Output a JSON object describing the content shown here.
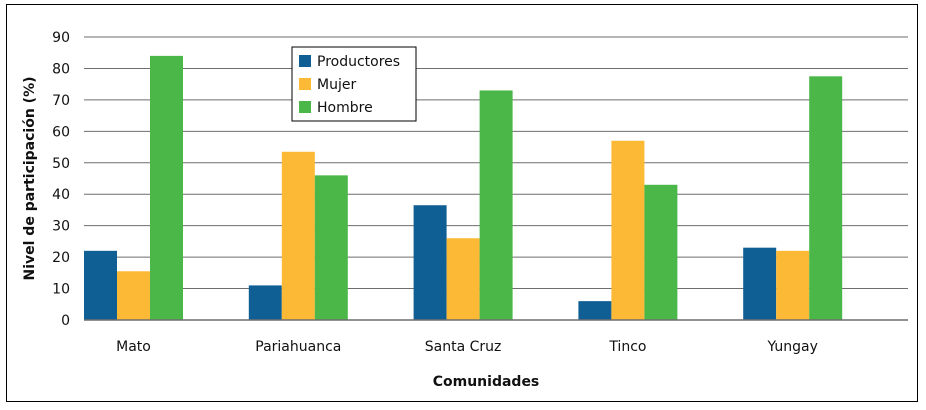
{
  "chart_data": {
    "type": "bar",
    "title": "",
    "xlabel": "Comunidades",
    "ylabel": "Nivel de participación (%)",
    "ylim": [
      0,
      90
    ],
    "yticks": [
      0,
      10,
      20,
      30,
      40,
      50,
      60,
      70,
      80,
      90
    ],
    "grid": true,
    "legend_position": "top-center",
    "categories": [
      "Mato",
      "Pariahuanca",
      "Santa Cruz",
      "Tinco",
      "Yungay"
    ],
    "series": [
      {
        "name": "Productores",
        "color": "#0f5f94",
        "values": [
          22,
          11,
          36.5,
          6,
          23
        ]
      },
      {
        "name": "Mujer",
        "color": "#fcb936",
        "values": [
          15.5,
          53.5,
          26,
          57,
          22
        ]
      },
      {
        "name": "Hombre",
        "color": "#4bb748",
        "values": [
          84,
          46,
          73,
          43,
          77.5
        ]
      }
    ]
  }
}
